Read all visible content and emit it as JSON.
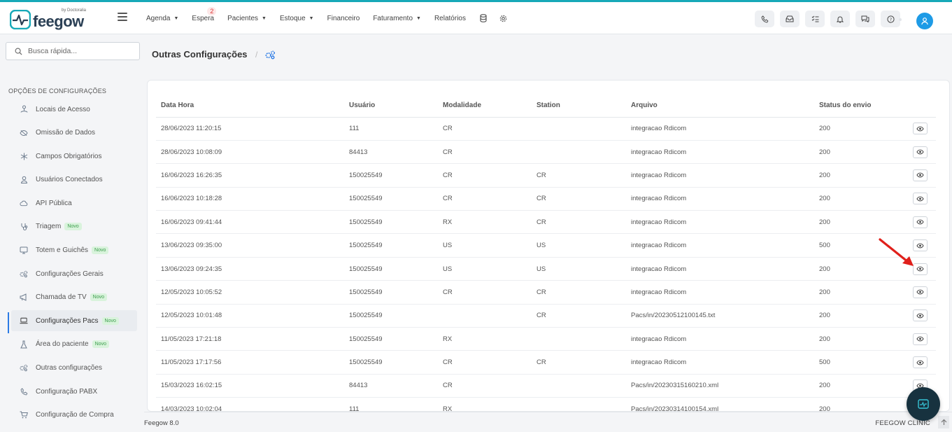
{
  "brand": {
    "name": "feegow",
    "by": "by Doctoralia"
  },
  "nav": {
    "items": [
      {
        "label": "Agenda",
        "caret": true
      },
      {
        "label": "Espera",
        "caret": false,
        "badge": "2"
      },
      {
        "label": "Pacientes",
        "caret": true
      },
      {
        "label": "Estoque",
        "caret": true
      },
      {
        "label": "Financeiro",
        "caret": false
      },
      {
        "label": "Faturamento",
        "caret": true
      },
      {
        "label": "Relatórios",
        "caret": false
      }
    ],
    "icons": [
      "database-icon",
      "gear-icon"
    ],
    "right_icons": [
      "phone-icon",
      "inbox-icon",
      "checklist-icon",
      "bell-icon",
      "chat-icon",
      "help-icon"
    ]
  },
  "search": {
    "placeholder": "Busca rápida..."
  },
  "sidebar": {
    "heading": "OPÇÕES DE CONFIGURAÇÕES",
    "items": [
      {
        "label": "Locais de Acesso",
        "icon": "location-icon",
        "novo": false
      },
      {
        "label": "Omissão de Dados",
        "icon": "eye-off-icon",
        "novo": false
      },
      {
        "label": "Campos Obrigatórios",
        "icon": "asterisk-icon",
        "novo": false
      },
      {
        "label": "Usuários Conectados",
        "icon": "user-icon",
        "novo": false
      },
      {
        "label": "API Pública",
        "icon": "cloud-icon",
        "novo": false
      },
      {
        "label": "Triagem",
        "icon": "stethoscope-icon",
        "novo": true
      },
      {
        "label": "Totem e Guichês",
        "icon": "monitor-icon",
        "novo": true
      },
      {
        "label": "Configurações Gerais",
        "icon": "gears-icon",
        "novo": false
      },
      {
        "label": "Chamada de TV",
        "icon": "megaphone-icon",
        "novo": true
      },
      {
        "label": "Configurações Pacs",
        "icon": "laptop-icon",
        "novo": true,
        "active": true
      },
      {
        "label": "Área do paciente",
        "icon": "flask-icon",
        "novo": true
      },
      {
        "label": "Outras configurações",
        "icon": "gears-icon",
        "novo": false
      },
      {
        "label": "Configuração PABX",
        "icon": "phone-icon",
        "novo": false
      },
      {
        "label": "Configuração de Compra",
        "icon": "cart-icon",
        "novo": false
      }
    ],
    "novo_label": "Novo"
  },
  "page": {
    "title": "Outras Configurações",
    "crumb_sep": "/"
  },
  "table": {
    "headers": [
      "Data Hora",
      "Usuário",
      "Modalidade",
      "Station",
      "Arquivo",
      "Status do envio",
      ""
    ],
    "rows": [
      [
        "28/06/2023 11:20:15",
        "111",
        "CR",
        "",
        "integracao Rdicom",
        "200"
      ],
      [
        "28/06/2023 10:08:09",
        "84413",
        "CR",
        "",
        "integracao Rdicom",
        "200"
      ],
      [
        "16/06/2023 16:26:35",
        "150025549",
        "CR",
        "CR",
        "integracao Rdicom",
        "200"
      ],
      [
        "16/06/2023 10:18:28",
        "150025549",
        "CR",
        "CR",
        "integracao Rdicom",
        "200"
      ],
      [
        "16/06/2023 09:41:44",
        "150025549",
        "RX",
        "CR",
        "integracao Rdicom",
        "200"
      ],
      [
        "13/06/2023 09:35:00",
        "150025549",
        "US",
        "US",
        "integracao Rdicom",
        "500"
      ],
      [
        "13/06/2023 09:24:35",
        "150025549",
        "US",
        "US",
        "integracao Rdicom",
        "200"
      ],
      [
        "12/05/2023 10:05:52",
        "150025549",
        "CR",
        "CR",
        "integracao Rdicom",
        "200"
      ],
      [
        "12/05/2023 10:01:48",
        "150025549",
        "",
        "CR",
        "Pacs/in/20230512100145.txt",
        "200"
      ],
      [
        "11/05/2023 17:21:18",
        "150025549",
        "RX",
        "",
        "integracao Rdicom",
        "200"
      ],
      [
        "11/05/2023 17:17:56",
        "150025549",
        "CR",
        "CR",
        "integracao Rdicom",
        "500"
      ],
      [
        "15/03/2023 16:02:15",
        "84413",
        "CR",
        "",
        "Pacs/in/20230315160210.xml",
        "200"
      ],
      [
        "14/03/2023 10:02:04",
        "111",
        "RX",
        "",
        "Pacs/in/20230314100154.xml",
        "200"
      ]
    ]
  },
  "footer": {
    "version": "Feegow 8.0",
    "brand": "FEEGOW CLINIC"
  },
  "colors": {
    "accent": "#1e9be6",
    "active_bar": "#2c7be5",
    "arrow": "#e0201b",
    "fab": "#17323f"
  }
}
